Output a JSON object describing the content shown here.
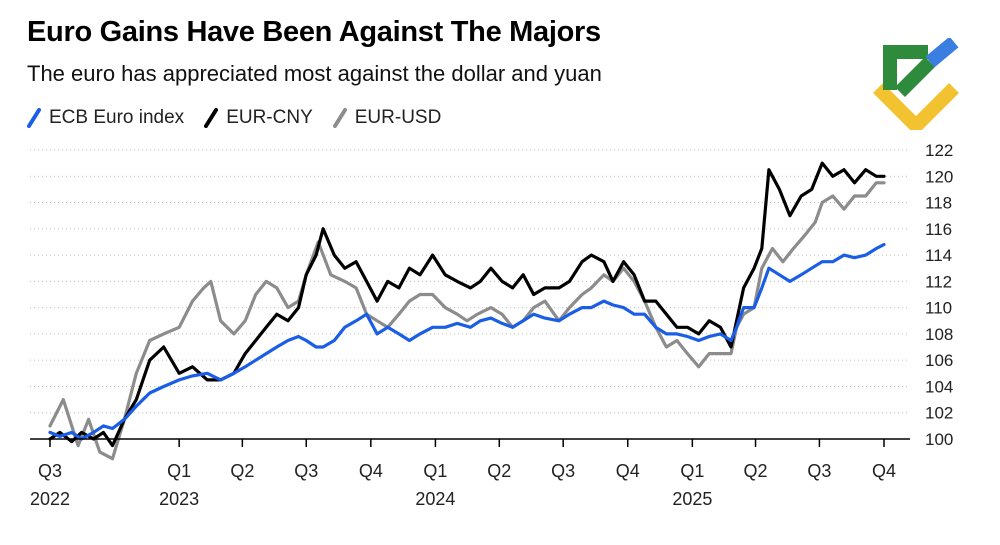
{
  "header": {
    "title": "Euro Gains Have Been Against The Majors",
    "subtitle": "The euro has appreciated most against the dollar and yuan"
  },
  "logo": {
    "icon": "brand-logo-icon",
    "colors": [
      "#2e8b3c",
      "#3a7fe0",
      "#f2c230"
    ]
  },
  "chart_data": {
    "type": "line",
    "title": "Euro Gains Have Been Against The Majors",
    "subtitle": "The euro has appreciated most against the dollar and yuan",
    "xlabel": "",
    "ylabel": "",
    "ylim": [
      100,
      122
    ],
    "yticks": [
      100,
      102,
      104,
      106,
      108,
      110,
      112,
      114,
      116,
      118,
      120,
      122
    ],
    "xlim": [
      "2022-07-01",
      "2025-10-01"
    ],
    "x_ticks": [
      {
        "date": "2022-07-01",
        "label": "Q3",
        "year": "2022"
      },
      {
        "date": "2023-01-01",
        "label": "Q1",
        "year": "2023"
      },
      {
        "date": "2023-04-01",
        "label": "Q2",
        "year": ""
      },
      {
        "date": "2023-07-01",
        "label": "Q3",
        "year": ""
      },
      {
        "date": "2023-10-01",
        "label": "Q4",
        "year": ""
      },
      {
        "date": "2024-01-01",
        "label": "Q1",
        "year": "2024"
      },
      {
        "date": "2024-04-01",
        "label": "Q2",
        "year": ""
      },
      {
        "date": "2024-07-01",
        "label": "Q3",
        "year": ""
      },
      {
        "date": "2024-10-01",
        "label": "Q4",
        "year": ""
      },
      {
        "date": "2025-01-01",
        "label": "Q1",
        "year": "2025"
      },
      {
        "date": "2025-04-01",
        "label": "Q2",
        "year": ""
      },
      {
        "date": "2025-07-01",
        "label": "Q3",
        "year": ""
      },
      {
        "date": "2025-10-01",
        "label": "Q4",
        "year": ""
      }
    ],
    "grid": "horizontal-dotted",
    "legend_position": "top-left",
    "y_axis_position": "right",
    "series": [
      {
        "name": "EUR-USD",
        "color": "#8c8c8c",
        "points": [
          [
            "2022-07-01",
            101.0
          ],
          [
            "2022-07-20",
            103.0
          ],
          [
            "2022-08-10",
            99.5
          ],
          [
            "2022-08-25",
            101.5
          ],
          [
            "2022-09-10",
            99.0
          ],
          [
            "2022-09-28",
            98.5
          ],
          [
            "2022-10-15",
            101.5
          ],
          [
            "2022-11-01",
            105.0
          ],
          [
            "2022-11-20",
            107.5
          ],
          [
            "2022-12-10",
            108.0
          ],
          [
            "2023-01-01",
            108.5
          ],
          [
            "2023-01-20",
            110.5
          ],
          [
            "2023-02-05",
            111.5
          ],
          [
            "2023-02-15",
            112.0
          ],
          [
            "2023-03-01",
            109.0
          ],
          [
            "2023-03-20",
            108.0
          ],
          [
            "2023-04-05",
            109.0
          ],
          [
            "2023-04-20",
            111.0
          ],
          [
            "2023-05-05",
            112.0
          ],
          [
            "2023-05-20",
            111.5
          ],
          [
            "2023-06-05",
            110.0
          ],
          [
            "2023-06-20",
            110.5
          ],
          [
            "2023-07-01",
            112.5
          ],
          [
            "2023-07-18",
            115.0
          ],
          [
            "2023-08-05",
            112.5
          ],
          [
            "2023-08-25",
            112.0
          ],
          [
            "2023-09-10",
            111.5
          ],
          [
            "2023-09-25",
            109.5
          ],
          [
            "2023-10-10",
            109.0
          ],
          [
            "2023-10-25",
            108.5
          ],
          [
            "2023-11-10",
            109.5
          ],
          [
            "2023-11-25",
            110.5
          ],
          [
            "2023-12-10",
            111.0
          ],
          [
            "2023-12-28",
            111.0
          ],
          [
            "2024-01-15",
            110.0
          ],
          [
            "2024-02-01",
            109.5
          ],
          [
            "2024-02-15",
            109.0
          ],
          [
            "2024-03-01",
            109.5
          ],
          [
            "2024-03-20",
            110.0
          ],
          [
            "2024-04-05",
            109.5
          ],
          [
            "2024-04-20",
            108.5
          ],
          [
            "2024-05-05",
            109.0
          ],
          [
            "2024-05-20",
            110.0
          ],
          [
            "2024-06-05",
            110.5
          ],
          [
            "2024-06-25",
            109.0
          ],
          [
            "2024-07-10",
            110.0
          ],
          [
            "2024-07-28",
            111.0
          ],
          [
            "2024-08-10",
            111.5
          ],
          [
            "2024-08-28",
            112.5
          ],
          [
            "2024-09-10",
            112.0
          ],
          [
            "2024-09-25",
            113.0
          ],
          [
            "2024-10-10",
            112.0
          ],
          [
            "2024-10-25",
            110.5
          ],
          [
            "2024-11-10",
            108.5
          ],
          [
            "2024-11-25",
            107.0
          ],
          [
            "2024-12-10",
            107.5
          ],
          [
            "2024-12-25",
            106.5
          ],
          [
            "2025-01-10",
            105.5
          ],
          [
            "2025-01-25",
            106.5
          ],
          [
            "2025-02-10",
            106.5
          ],
          [
            "2025-02-25",
            106.5
          ],
          [
            "2025-03-05",
            108.5
          ],
          [
            "2025-03-15",
            109.5
          ],
          [
            "2025-03-30",
            110.0
          ],
          [
            "2025-04-10",
            113.0
          ],
          [
            "2025-04-25",
            114.5
          ],
          [
            "2025-05-10",
            113.5
          ],
          [
            "2025-05-25",
            114.5
          ],
          [
            "2025-06-10",
            115.5
          ],
          [
            "2025-06-25",
            116.5
          ],
          [
            "2025-07-05",
            118.0
          ],
          [
            "2025-07-20",
            118.5
          ],
          [
            "2025-08-05",
            117.5
          ],
          [
            "2025-08-20",
            118.5
          ],
          [
            "2025-09-05",
            118.5
          ],
          [
            "2025-09-20",
            119.5
          ],
          [
            "2025-10-01",
            119.5
          ]
        ]
      },
      {
        "name": "EUR-CNY",
        "color": "#000000",
        "points": [
          [
            "2022-07-01",
            100.0
          ],
          [
            "2022-07-15",
            100.5
          ],
          [
            "2022-08-01",
            99.8
          ],
          [
            "2022-08-15",
            100.5
          ],
          [
            "2022-09-01",
            100.0
          ],
          [
            "2022-09-15",
            100.5
          ],
          [
            "2022-09-28",
            99.5
          ],
          [
            "2022-10-15",
            101.5
          ],
          [
            "2022-11-01",
            103.0
          ],
          [
            "2022-11-20",
            106.0
          ],
          [
            "2022-12-10",
            107.0
          ],
          [
            "2023-01-01",
            105.0
          ],
          [
            "2023-01-20",
            105.5
          ],
          [
            "2023-02-10",
            104.5
          ],
          [
            "2023-03-01",
            104.5
          ],
          [
            "2023-03-20",
            105.0
          ],
          [
            "2023-04-05",
            106.5
          ],
          [
            "2023-04-20",
            107.5
          ],
          [
            "2023-05-05",
            108.5
          ],
          [
            "2023-05-20",
            109.5
          ],
          [
            "2023-06-05",
            109.0
          ],
          [
            "2023-06-20",
            110.0
          ],
          [
            "2023-07-01",
            112.5
          ],
          [
            "2023-07-15",
            114.0
          ],
          [
            "2023-07-25",
            116.0
          ],
          [
            "2023-08-10",
            114.0
          ],
          [
            "2023-08-25",
            113.0
          ],
          [
            "2023-09-10",
            113.5
          ],
          [
            "2023-09-25",
            112.0
          ],
          [
            "2023-10-10",
            110.5
          ],
          [
            "2023-10-25",
            112.0
          ],
          [
            "2023-11-10",
            111.5
          ],
          [
            "2023-11-25",
            113.0
          ],
          [
            "2023-12-10",
            112.5
          ],
          [
            "2023-12-28",
            114.0
          ],
          [
            "2024-01-15",
            112.5
          ],
          [
            "2024-02-01",
            112.0
          ],
          [
            "2024-02-20",
            111.5
          ],
          [
            "2024-03-05",
            112.0
          ],
          [
            "2024-03-20",
            113.0
          ],
          [
            "2024-04-05",
            112.0
          ],
          [
            "2024-04-20",
            111.5
          ],
          [
            "2024-05-05",
            112.5
          ],
          [
            "2024-05-20",
            111.0
          ],
          [
            "2024-06-05",
            111.5
          ],
          [
            "2024-06-25",
            111.5
          ],
          [
            "2024-07-10",
            112.0
          ],
          [
            "2024-07-28",
            113.5
          ],
          [
            "2024-08-10",
            114.0
          ],
          [
            "2024-08-28",
            113.5
          ],
          [
            "2024-09-10",
            112.0
          ],
          [
            "2024-09-25",
            113.5
          ],
          [
            "2024-10-10",
            112.5
          ],
          [
            "2024-10-25",
            110.5
          ],
          [
            "2024-11-10",
            110.5
          ],
          [
            "2024-11-25",
            109.5
          ],
          [
            "2024-12-10",
            108.5
          ],
          [
            "2024-12-25",
            108.5
          ],
          [
            "2025-01-10",
            108.0
          ],
          [
            "2025-01-25",
            109.0
          ],
          [
            "2025-02-10",
            108.5
          ],
          [
            "2025-02-25",
            107.0
          ],
          [
            "2025-03-05",
            109.0
          ],
          [
            "2025-03-15",
            111.5
          ],
          [
            "2025-03-30",
            113.0
          ],
          [
            "2025-04-10",
            114.5
          ],
          [
            "2025-04-20",
            120.5
          ],
          [
            "2025-05-05",
            119.0
          ],
          [
            "2025-05-20",
            117.0
          ],
          [
            "2025-06-05",
            118.5
          ],
          [
            "2025-06-20",
            119.0
          ],
          [
            "2025-07-05",
            121.0
          ],
          [
            "2025-07-20",
            120.0
          ],
          [
            "2025-08-05",
            120.5
          ],
          [
            "2025-08-20",
            119.5
          ],
          [
            "2025-09-05",
            120.5
          ],
          [
            "2025-09-20",
            120.0
          ],
          [
            "2025-10-01",
            120.0
          ]
        ]
      },
      {
        "name": "ECB Euro index",
        "color": "#1a5ee6",
        "points": [
          [
            "2022-07-01",
            100.5
          ],
          [
            "2022-07-15",
            100.2
          ],
          [
            "2022-08-01",
            100.5
          ],
          [
            "2022-08-15",
            100.0
          ],
          [
            "2022-09-01",
            100.5
          ],
          [
            "2022-09-15",
            101.0
          ],
          [
            "2022-09-28",
            100.8
          ],
          [
            "2022-10-15",
            101.5
          ],
          [
            "2022-11-01",
            102.5
          ],
          [
            "2022-11-20",
            103.5
          ],
          [
            "2022-12-10",
            104.0
          ],
          [
            "2023-01-01",
            104.5
          ],
          [
            "2023-01-20",
            104.8
          ],
          [
            "2023-02-10",
            105.0
          ],
          [
            "2023-03-01",
            104.5
          ],
          [
            "2023-03-20",
            105.0
          ],
          [
            "2023-04-05",
            105.5
          ],
          [
            "2023-04-20",
            106.0
          ],
          [
            "2023-05-05",
            106.5
          ],
          [
            "2023-05-20",
            107.0
          ],
          [
            "2023-06-05",
            107.5
          ],
          [
            "2023-06-20",
            107.8
          ],
          [
            "2023-07-01",
            107.5
          ],
          [
            "2023-07-15",
            107.0
          ],
          [
            "2023-07-25",
            107.0
          ],
          [
            "2023-08-10",
            107.5
          ],
          [
            "2023-08-25",
            108.5
          ],
          [
            "2023-09-10",
            109.0
          ],
          [
            "2023-09-25",
            109.5
          ],
          [
            "2023-10-10",
            108.0
          ],
          [
            "2023-10-25",
            108.5
          ],
          [
            "2023-11-10",
            108.0
          ],
          [
            "2023-11-25",
            107.5
          ],
          [
            "2023-12-10",
            108.0
          ],
          [
            "2023-12-28",
            108.5
          ],
          [
            "2024-01-15",
            108.5
          ],
          [
            "2024-02-01",
            108.8
          ],
          [
            "2024-02-20",
            108.5
          ],
          [
            "2024-03-05",
            109.0
          ],
          [
            "2024-03-20",
            109.2
          ],
          [
            "2024-04-05",
            108.8
          ],
          [
            "2024-04-20",
            108.5
          ],
          [
            "2024-05-05",
            109.0
          ],
          [
            "2024-05-20",
            109.5
          ],
          [
            "2024-06-05",
            109.2
          ],
          [
            "2024-06-25",
            109.0
          ],
          [
            "2024-07-10",
            109.5
          ],
          [
            "2024-07-28",
            110.0
          ],
          [
            "2024-08-10",
            110.0
          ],
          [
            "2024-08-28",
            110.5
          ],
          [
            "2024-09-10",
            110.2
          ],
          [
            "2024-09-25",
            110.0
          ],
          [
            "2024-10-10",
            109.5
          ],
          [
            "2024-10-25",
            109.5
          ],
          [
            "2024-11-10",
            108.5
          ],
          [
            "2024-11-25",
            108.0
          ],
          [
            "2024-12-10",
            108.0
          ],
          [
            "2024-12-25",
            107.8
          ],
          [
            "2025-01-10",
            107.5
          ],
          [
            "2025-01-25",
            107.8
          ],
          [
            "2025-02-10",
            108.0
          ],
          [
            "2025-02-25",
            107.5
          ],
          [
            "2025-03-05",
            108.5
          ],
          [
            "2025-03-15",
            110.0
          ],
          [
            "2025-03-30",
            110.0
          ],
          [
            "2025-04-10",
            111.5
          ],
          [
            "2025-04-20",
            113.0
          ],
          [
            "2025-05-05",
            112.5
          ],
          [
            "2025-05-20",
            112.0
          ],
          [
            "2025-06-05",
            112.5
          ],
          [
            "2025-06-20",
            113.0
          ],
          [
            "2025-07-05",
            113.5
          ],
          [
            "2025-07-20",
            113.5
          ],
          [
            "2025-08-05",
            114.0
          ],
          [
            "2025-08-20",
            113.8
          ],
          [
            "2025-09-05",
            114.0
          ],
          [
            "2025-09-20",
            114.5
          ],
          [
            "2025-10-01",
            114.8
          ]
        ]
      }
    ]
  },
  "legend": [
    {
      "label": "ECB Euro index",
      "color": "#1a5ee6"
    },
    {
      "label": "EUR-CNY",
      "color": "#000000"
    },
    {
      "label": "EUR-USD",
      "color": "#8c8c8c"
    }
  ]
}
